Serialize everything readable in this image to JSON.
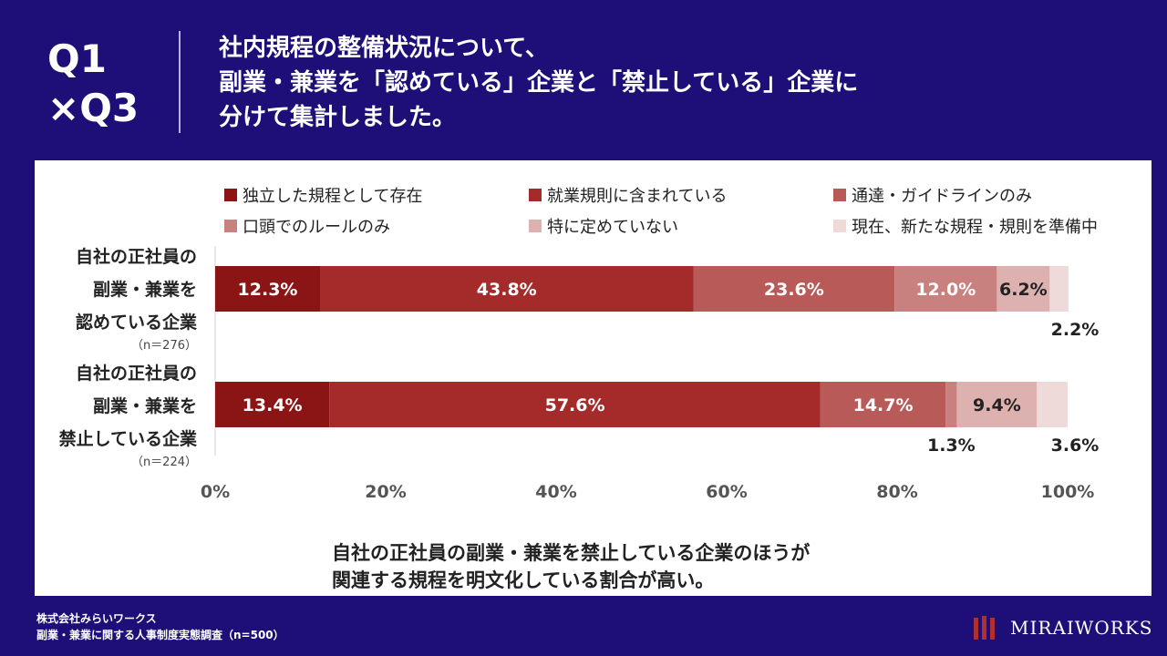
{
  "header": {
    "question": [
      "Q1",
      "×Q3"
    ],
    "title_lines": [
      "社内規程の整備状況について、",
      "副業・兼業を「認めている」企業と「禁止している」企業に",
      "分けて集計しました。"
    ]
  },
  "chart_data": {
    "type": "bar",
    "orientation": "horizontal",
    "stacked": true,
    "categories": [
      {
        "lines": [
          "自社の正社員の",
          "副業・兼業を",
          "認めている企業"
        ],
        "n": "（n＝276）"
      },
      {
        "lines": [
          "自社の正社員の",
          "副業・兼業を",
          "禁止している企業"
        ],
        "n": "（n＝224）"
      }
    ],
    "series": [
      {
        "name": "独立した規程として存在",
        "color": "#8b1414",
        "values": [
          12.3,
          13.4
        ],
        "labels": [
          "12.3%",
          "13.4%"
        ]
      },
      {
        "name": "就業規則に含まれている",
        "color": "#a52a2a",
        "values": [
          43.8,
          57.6
        ],
        "labels": [
          "43.8%",
          "57.6%"
        ]
      },
      {
        "name": "通達・ガイドラインのみ",
        "color": "#b85a58",
        "values": [
          23.6,
          14.7
        ],
        "labels": [
          "23.6%",
          "14.7%"
        ]
      },
      {
        "name": "口頭でのルールのみ",
        "color": "#c9817f",
        "values": [
          12.0,
          1.3
        ],
        "labels": [
          "12.0%",
          "1.3%"
        ]
      },
      {
        "name": "特に定めていない",
        "color": "#ddb1b0",
        "values": [
          6.2,
          9.4
        ],
        "labels": [
          "6.2%",
          "9.4%"
        ]
      },
      {
        "name": "現在、新たな規程・規則を準備中",
        "color": "#efdada",
        "values": [
          2.2,
          3.6
        ],
        "labels": [
          "2.2%",
          "3.6%"
        ]
      }
    ],
    "xlim": [
      0,
      100
    ],
    "xticks": [
      "0%",
      "20%",
      "40%",
      "60%",
      "80%",
      "100%"
    ],
    "legend_position": "top"
  },
  "conclusion_lines": [
    "自社の正社員の副業・兼業を禁止している企業のほうが",
    "関連する規程を明文化している割合が高い。"
  ],
  "footer": {
    "company": "株式会社みらいワークス",
    "survey": "副業・兼業に関する人事制度実態調査（n=500）"
  },
  "logo": {
    "text": "MIRAIWORKS"
  }
}
